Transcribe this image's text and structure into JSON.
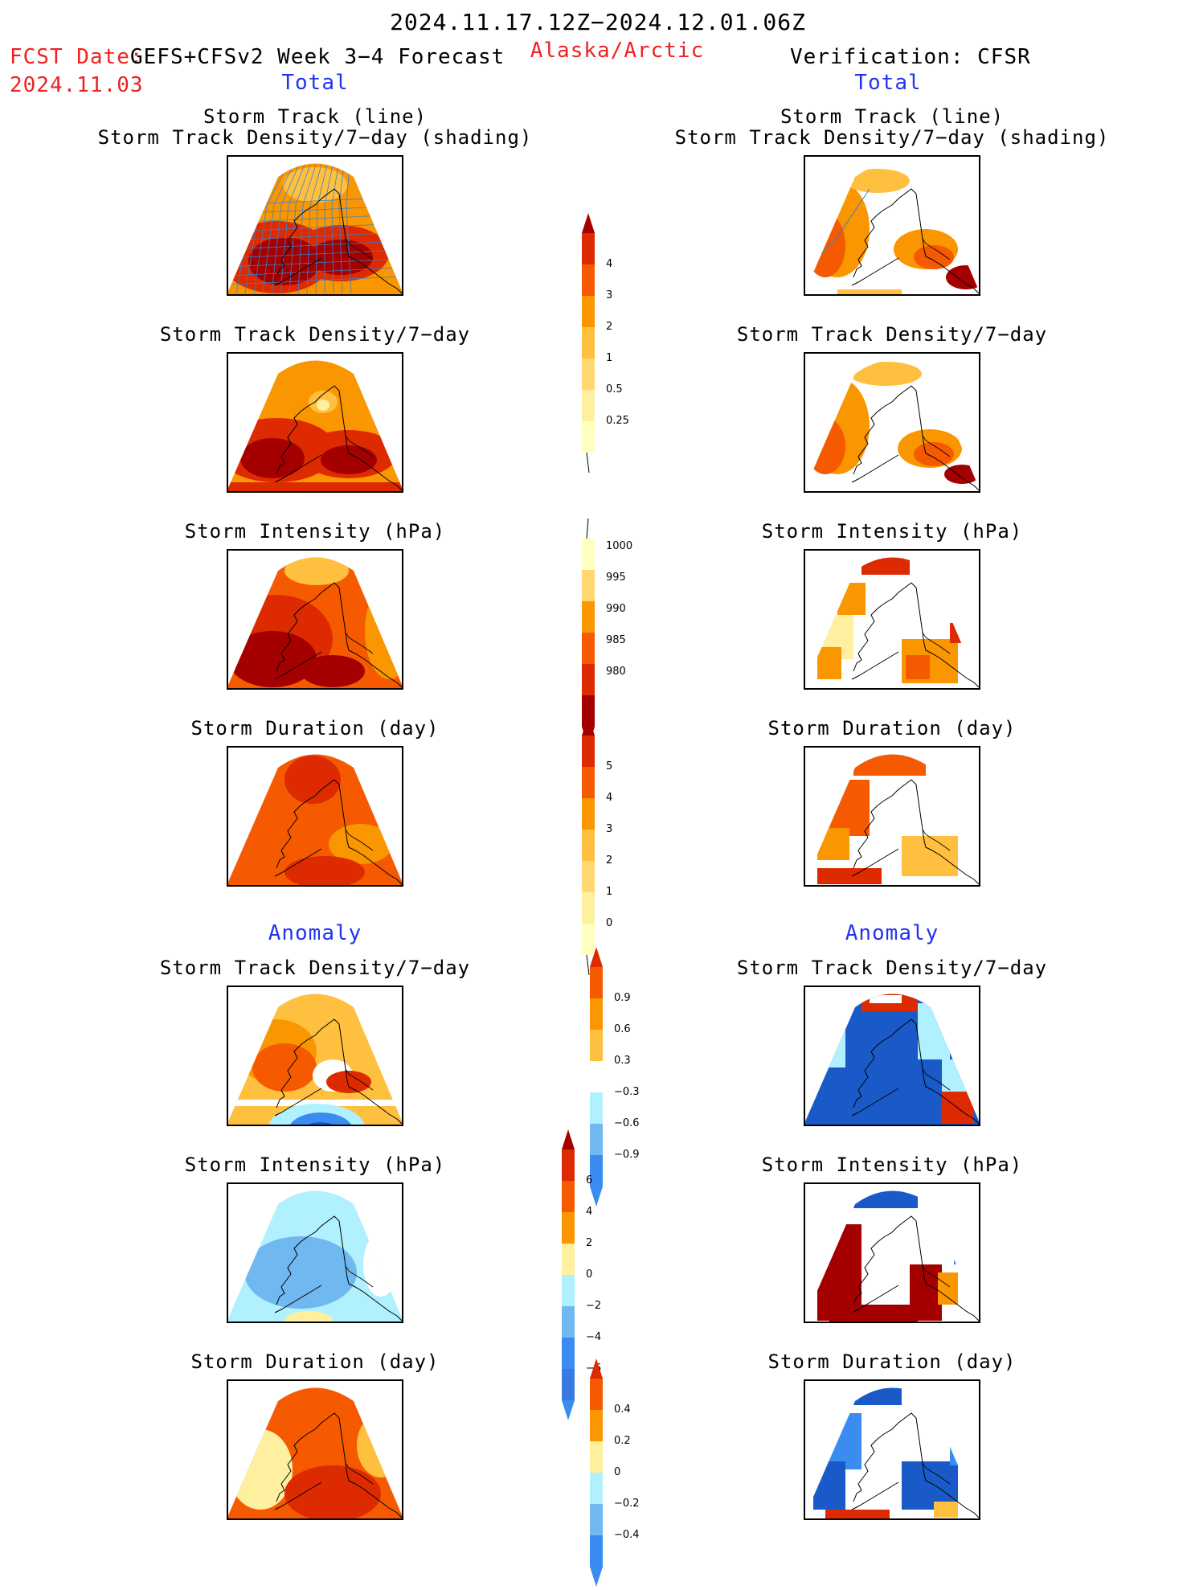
{
  "header": {
    "date_range": "2024.11.17.12Z−2024.12.01.06Z",
    "fcst_label": "FCST Date:",
    "fcst_date": "2024.11.03",
    "model": "GEFS+CFSv2 Week 3−4 Forecast",
    "region": "Alaska/Arctic",
    "verification": "Verification: CFSR"
  },
  "columns": {
    "left_section_total": "Total",
    "right_section_total": "Total",
    "left_section_anomaly": "Anomaly",
    "right_section_anomaly": "Anomaly"
  },
  "panel_titles": {
    "track_line": "Storm Track (line)",
    "track_shading": "Storm Track Density/7−day (shading)",
    "density": "Storm Track Density/7−day",
    "intensity": "Storm Intensity (hPa)",
    "duration": "Storm Duration (day)"
  },
  "colorbars": {
    "density_total": [
      "4",
      "3",
      "2",
      "1",
      "0.5",
      "0.25"
    ],
    "intensity_total": [
      "1000",
      "995",
      "990",
      "985",
      "980"
    ],
    "duration_total": [
      "5",
      "4",
      "3",
      "2",
      "1",
      "0"
    ],
    "density_anom": [
      "0.9",
      "0.6",
      "0.3",
      "−0.3",
      "−0.6",
      "−0.9"
    ],
    "intensity_anom": [
      "6",
      "4",
      "2",
      "0",
      "−2",
      "−4",
      "−6"
    ],
    "duration_anom": [
      "0.4",
      "0.2",
      "0",
      "−0.2",
      "−0.4"
    ]
  },
  "colors": {
    "dark_red": "#a50000",
    "red": "#dd2a00",
    "orange_red": "#f55a00",
    "orange": "#fa9600",
    "light_orange": "#ffc040",
    "pale_yellow": "#fff0a0",
    "light_blue": "#b0f0ff",
    "mid_blue": "#70b8f0",
    "blue": "#3a8cf0",
    "dark_blue": "#1a5ac8",
    "track_line": "#3a80d0"
  }
}
